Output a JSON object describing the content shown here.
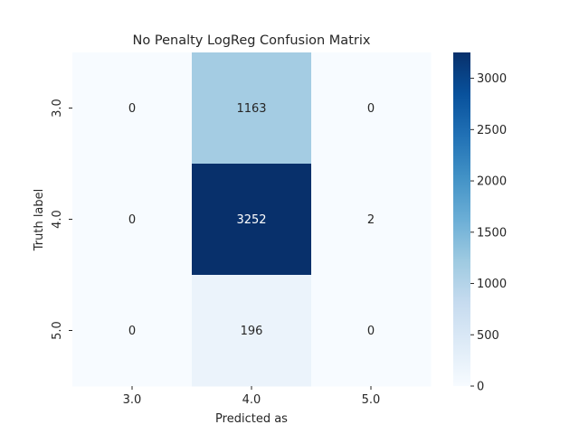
{
  "chart_data": {
    "type": "heatmap",
    "title": "No Penalty LogReg Confusion Matrix",
    "xlabel": "Predicted as",
    "ylabel": "Truth label",
    "x_categories": [
      "3.0",
      "4.0",
      "5.0"
    ],
    "y_categories": [
      "3.0",
      "4.0",
      "5.0"
    ],
    "values": [
      [
        0,
        1163,
        0
      ],
      [
        0,
        3252,
        2
      ],
      [
        0,
        196,
        0
      ]
    ],
    "colormap": "Blues",
    "colorbar": {
      "min": 0,
      "max": 3252,
      "ticks": [
        0,
        500,
        1000,
        1500,
        2000,
        2500,
        3000
      ]
    },
    "annotation_colors": {
      "light": "#ffffff",
      "dark": "#262626"
    }
  }
}
